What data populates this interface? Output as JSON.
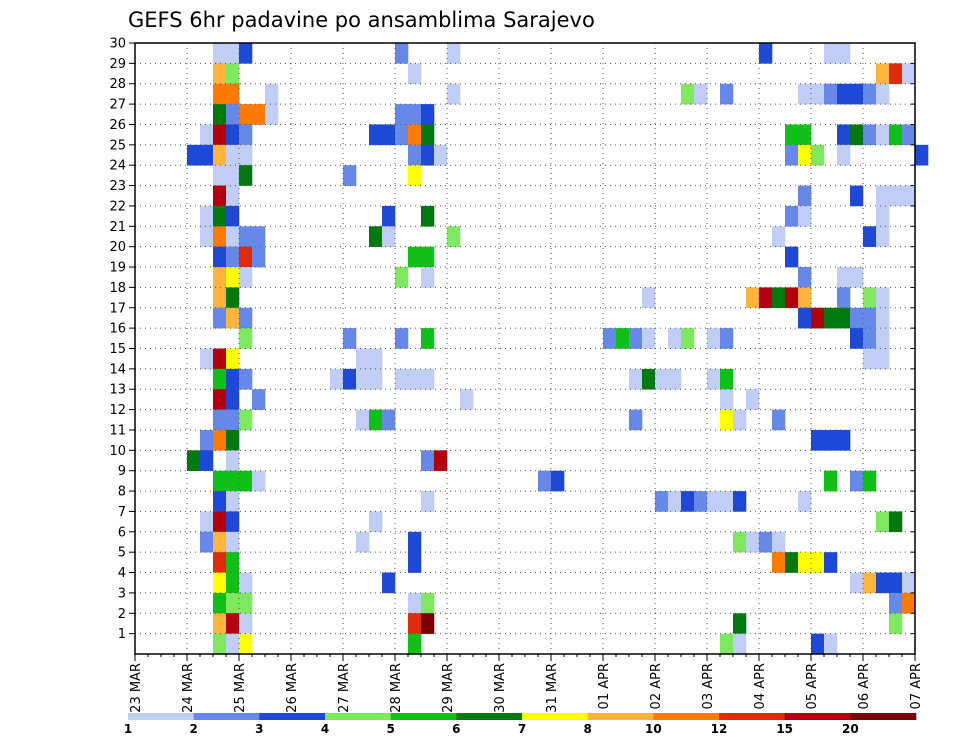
{
  "chart_data": {
    "type": "heatmap",
    "title": "GEFS 6hr padavine po ansamblima Sarajevo",
    "x_ticks": [
      "23 MAR",
      "24 MAR",
      "25 MAR",
      "26 MAR",
      "27 MAR",
      "28 MAR",
      "29 MAR",
      "30 MAR",
      "31 MAR",
      "01 APR",
      "02 APR",
      "03 APR",
      "04 APR",
      "05 APR",
      "06 APR",
      "07 APR"
    ],
    "y_ticks": [
      "1",
      "2",
      "3",
      "4",
      "5",
      "6",
      "7",
      "8",
      "9",
      "10",
      "11",
      "12",
      "13",
      "14",
      "15",
      "16",
      "17",
      "18",
      "19",
      "20",
      "21",
      "22",
      "23",
      "24",
      "25",
      "26",
      "27",
      "28",
      "29",
      "30"
    ],
    "x_range": [
      "23 MAR",
      "07 APR"
    ],
    "y_range": [
      0,
      30
    ],
    "steps_per_day": 4,
    "grid": true,
    "legend": {
      "position": "bottom",
      "colors": [
        "#c0cdf5",
        "#6688e8",
        "#1d49d6",
        "#7ee85e",
        "#10c016",
        "#007a10",
        "#ffff00",
        "#ffb43c",
        "#ff7a00",
        "#e02a0c",
        "#b4000e",
        "#780004"
      ],
      "labels": [
        "1",
        "2",
        "3",
        "4",
        "5",
        "6",
        "7",
        "8",
        "10",
        "12",
        "15",
        "20"
      ]
    },
    "cells": [
      [
        30,
        [
          "6:1",
          "7:1",
          "8:3",
          "20:2",
          "24:1",
          "48:3",
          "53:1",
          "54:1"
        ]
      ],
      [
        29,
        [
          "6:8",
          "7:4",
          "21:1",
          "57:8",
          "58:10",
          "59:1"
        ]
      ],
      [
        28,
        [
          "6:9",
          "7:9",
          "10:1",
          "24:1",
          "42:4",
          "43:1",
          "45:2",
          "51:1",
          "52:1",
          "53:2",
          "54:3",
          "55:3",
          "56:2",
          "57:1"
        ]
      ],
      [
        27,
        [
          "6:6",
          "7:2",
          "8:9",
          "9:9",
          "10:1",
          "20:2",
          "21:2",
          "22:3"
        ]
      ],
      [
        26,
        [
          "5:1",
          "6:11",
          "7:3",
          "8:2",
          "18:3",
          "19:3",
          "20:2",
          "21:9",
          "22:6",
          "50:5",
          "51:5",
          "54:3",
          "55:6",
          "56:2",
          "57:1",
          "58:5",
          "59:2"
        ]
      ],
      [
        25,
        [
          "4:3",
          "5:3",
          "6:8",
          "7:1",
          "8:1",
          "21:2",
          "22:3",
          "23:1",
          "50:2",
          "51:7",
          "52:4",
          "54:1",
          "60:3"
        ]
      ],
      [
        24,
        [
          "6:1",
          "7:1",
          "8:6",
          "16:2",
          "21:7"
        ]
      ],
      [
        23,
        [
          "6:11",
          "7:1",
          "51:2",
          "55:3",
          "57:1",
          "58:1",
          "59:1"
        ]
      ],
      [
        22,
        [
          "5:1",
          "6:6",
          "7:3",
          "19:3",
          "22:6",
          "50:2",
          "51:1",
          "57:1"
        ]
      ],
      [
        21,
        [
          "5:1",
          "6:9",
          "7:1",
          "8:2",
          "9:2",
          "18:6",
          "19:1",
          "24:4",
          "49:1",
          "56:3",
          "57:1"
        ]
      ],
      [
        20,
        [
          "6:3",
          "7:2",
          "8:10",
          "9:2",
          "21:5",
          "22:5",
          "50:3"
        ]
      ],
      [
        19,
        [
          "6:8",
          "7:7",
          "8:1",
          "20:4",
          "22:1",
          "51:2",
          "54:1",
          "55:1"
        ]
      ],
      [
        18,
        [
          "6:8",
          "7:6",
          "39:1",
          "47:8",
          "48:11",
          "49:6",
          "50:11",
          "51:8",
          "54:2",
          "56:4",
          "57:1"
        ]
      ],
      [
        17,
        [
          "6:2",
          "7:8",
          "8:2",
          "51:3",
          "52:11",
          "53:6",
          "54:6",
          "55:2",
          "56:2",
          "57:1"
        ]
      ],
      [
        16,
        [
          "8:4",
          "16:2",
          "20:2",
          "22:5",
          "36:2",
          "37:5",
          "38:2",
          "39:1",
          "41:1",
          "42:4",
          "44:1",
          "45:2",
          "55:3",
          "56:2",
          "57:1"
        ]
      ],
      [
        15,
        [
          "5:1",
          "6:11",
          "7:7",
          "17:1",
          "18:1",
          "56:1",
          "57:1"
        ]
      ],
      [
        14,
        [
          "6:5",
          "7:3",
          "8:2",
          "15:1",
          "16:3",
          "17:1",
          "18:1",
          "20:1",
          "21:1",
          "22:1",
          "38:1",
          "39:6",
          "40:1",
          "41:1",
          "44:1",
          "45:5"
        ]
      ],
      [
        13,
        [
          "6:11",
          "7:3",
          "9:2",
          "25:1",
          "45:1",
          "47:1"
        ]
      ],
      [
        12,
        [
          "6:2",
          "7:2",
          "8:4",
          "17:1",
          "18:5",
          "19:2",
          "38:2",
          "45:7",
          "46:1",
          "49:2"
        ]
      ],
      [
        11,
        [
          "5:2",
          "6:9",
          "7:6",
          "52:3",
          "53:3",
          "54:3"
        ]
      ],
      [
        10,
        [
          "4:6",
          "5:3",
          "7:1",
          "22:2",
          "23:11"
        ]
      ],
      [
        9,
        [
          "6:5",
          "7:5",
          "8:5",
          "9:1",
          "31:2",
          "32:3",
          "53:5",
          "55:2",
          "56:5"
        ]
      ],
      [
        8,
        [
          "6:3",
          "7:1",
          "22:1",
          "40:2",
          "41:1",
          "42:3",
          "43:2",
          "44:1",
          "45:1",
          "46:3",
          "51:1"
        ]
      ],
      [
        7,
        [
          "5:1",
          "6:11",
          "7:3",
          "18:1",
          "57:4",
          "58:6"
        ]
      ],
      [
        6,
        [
          "5:2",
          "6:8",
          "7:1",
          "17:1",
          "21:3",
          "46:4",
          "47:1",
          "48:2",
          "49:1"
        ]
      ],
      [
        5,
        [
          "6:10",
          "7:5",
          "21:3",
          "49:9",
          "50:6",
          "51:7",
          "52:7",
          "53:3"
        ]
      ],
      [
        4,
        [
          "6:7",
          "7:5",
          "8:1",
          "19:3",
          "55:1",
          "56:8",
          "57:3",
          "58:3",
          "59:1"
        ]
      ],
      [
        3,
        [
          "6:5",
          "7:4",
          "8:4",
          "21:1",
          "22:4",
          "58:2",
          "59:9"
        ]
      ],
      [
        2,
        [
          "6:8",
          "7:11",
          "8:1",
          "21:10",
          "22:12",
          "46:6",
          "58:4"
        ]
      ],
      [
        1,
        [
          "6:4",
          "7:1",
          "8:7",
          "21:5",
          "45:4",
          "46:1",
          "52:3",
          "53:1"
        ]
      ]
    ]
  }
}
